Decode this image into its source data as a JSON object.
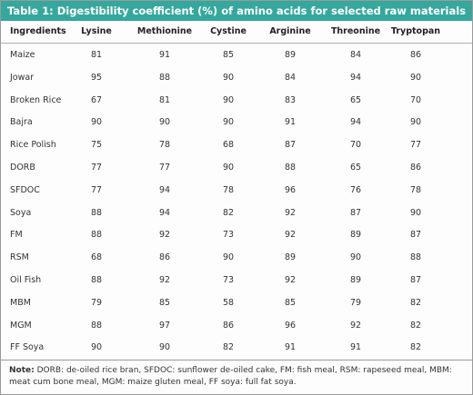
{
  "title": "Table 1: Digestibility coefficient (%) of amino acids for selected raw materials",
  "table": {
    "header": [
      "Ingredients",
      "Lysine",
      "Methionine",
      "Cystine",
      "Arginine",
      "Threonine",
      "Tryptopan"
    ],
    "rows": [
      [
        "Maize",
        81,
        91,
        85,
        89,
        84,
        86
      ],
      [
        "Jowar",
        95,
        88,
        90,
        84,
        94,
        90
      ],
      [
        "Broken Rice",
        67,
        81,
        90,
        83,
        65,
        70
      ],
      [
        "Bajra",
        90,
        90,
        90,
        91,
        94,
        90
      ],
      [
        "Rice Polish",
        75,
        78,
        68,
        87,
        70,
        77
      ],
      [
        "DORB",
        77,
        77,
        90,
        88,
        65,
        86
      ],
      [
        "SFDOC",
        77,
        94,
        78,
        96,
        76,
        78
      ],
      [
        "Soya",
        88,
        94,
        82,
        92,
        87,
        90
      ],
      [
        "FM",
        88,
        92,
        73,
        92,
        89,
        87
      ],
      [
        "RSM",
        68,
        86,
        90,
        89,
        90,
        88
      ],
      [
        "Oil Fish",
        88,
        92,
        73,
        92,
        89,
        87
      ],
      [
        "MBM",
        79,
        85,
        58,
        85,
        79,
        82
      ],
      [
        "MGM",
        88,
        97,
        86,
        96,
        92,
        82
      ],
      [
        "FF Soya",
        90,
        90,
        82,
        91,
        91,
        82
      ]
    ]
  },
  "note": {
    "label": "Note:",
    "text": "DORB: de-oiled rice bran, SFDOC: sunflower de-oiled cake, FM: fish meal, RSM: rapeseed meal, MBM: meat cum bone meal, MGM: maize gluten meal, FF soya: full fat soya."
  }
}
